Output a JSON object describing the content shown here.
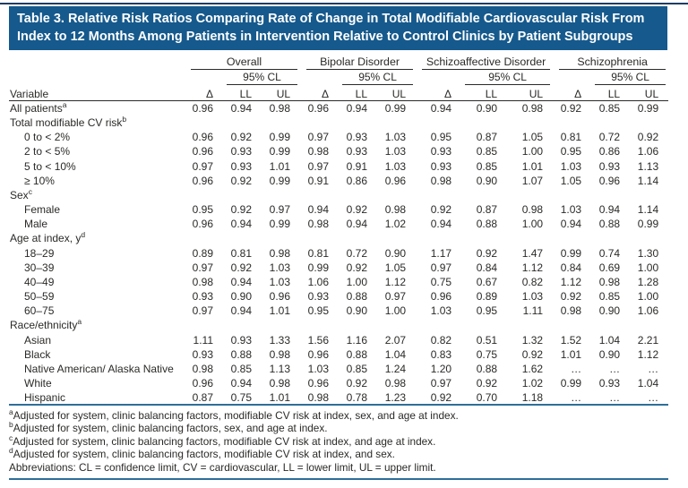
{
  "colors": {
    "banner_background": "#16598c",
    "banner_text": "#ffffff",
    "body_text": "#2b2a28",
    "blue_rule": "#2f6e99",
    "top_edge_rule": "#1d3d63"
  },
  "banner": {
    "title": "Table 3. Relative Risk Ratios Comparing Rate of Change in Total Modifiable Cardiovascular Risk From Index to 12 Months Among Patients in Intervention Relative to Control Clinics by Patient Subgroups"
  },
  "table": {
    "variable_header": "Variable",
    "groups": [
      {
        "name": "Overall"
      },
      {
        "name": "Bipolar Disorder"
      },
      {
        "name": "Schizoaffective Disorder"
      },
      {
        "name": "Schizophrenia"
      }
    ],
    "subheaders": {
      "delta": "Δ",
      "cl": "95% CL",
      "ll": "LL",
      "ul": "UL"
    },
    "rows": [
      {
        "label": "All patients",
        "sup": "a",
        "type": "data",
        "indent": false,
        "values": [
          "0.96",
          "0.94",
          "0.98",
          "0.96",
          "0.94",
          "0.99",
          "0.94",
          "0.90",
          "0.98",
          "0.92",
          "0.85",
          "0.99"
        ]
      },
      {
        "label": "Total modifiable CV risk",
        "sup": "b",
        "type": "section"
      },
      {
        "label": "0 to < 2%",
        "type": "data",
        "indent": true,
        "values": [
          "0.96",
          "0.92",
          "0.99",
          "0.97",
          "0.93",
          "1.03",
          "0.95",
          "0.87",
          "1.05",
          "0.81",
          "0.72",
          "0.92"
        ]
      },
      {
        "label": "2 to < 5%",
        "type": "data",
        "indent": true,
        "values": [
          "0.96",
          "0.93",
          "0.99",
          "0.98",
          "0.93",
          "1.03",
          "0.93",
          "0.85",
          "1.00",
          "0.95",
          "0.86",
          "1.06"
        ]
      },
      {
        "label": "5 to < 10%",
        "type": "data",
        "indent": true,
        "values": [
          "0.97",
          "0.93",
          "1.01",
          "0.97",
          "0.91",
          "1.03",
          "0.93",
          "0.85",
          "1.01",
          "1.03",
          "0.93",
          "1.13"
        ]
      },
      {
        "label": "≥ 10%",
        "type": "data",
        "indent": true,
        "values": [
          "0.96",
          "0.92",
          "0.99",
          "0.91",
          "0.86",
          "0.96",
          "0.98",
          "0.90",
          "1.07",
          "1.05",
          "0.96",
          "1.14"
        ]
      },
      {
        "label": "Sex",
        "sup": "c",
        "type": "section"
      },
      {
        "label": "Female",
        "type": "data",
        "indent": true,
        "values": [
          "0.95",
          "0.92",
          "0.97",
          "0.94",
          "0.92",
          "0.98",
          "0.92",
          "0.87",
          "0.98",
          "1.03",
          "0.94",
          "1.14"
        ]
      },
      {
        "label": "Male",
        "type": "data",
        "indent": true,
        "values": [
          "0.96",
          "0.94",
          "0.99",
          "0.98",
          "0.94",
          "1.02",
          "0.94",
          "0.88",
          "1.00",
          "0.94",
          "0.88",
          "0.99"
        ]
      },
      {
        "label": "Age at index, y",
        "sup": "d",
        "type": "section"
      },
      {
        "label": "18–29",
        "type": "data",
        "indent": true,
        "values": [
          "0.89",
          "0.81",
          "0.98",
          "0.81",
          "0.72",
          "0.90",
          "1.17",
          "0.92",
          "1.47",
          "0.99",
          "0.74",
          "1.30"
        ]
      },
      {
        "label": "30–39",
        "type": "data",
        "indent": true,
        "values": [
          "0.97",
          "0.92",
          "1.03",
          "0.99",
          "0.92",
          "1.05",
          "0.97",
          "0.84",
          "1.12",
          "0.84",
          "0.69",
          "1.00"
        ]
      },
      {
        "label": "40–49",
        "type": "data",
        "indent": true,
        "values": [
          "0.98",
          "0.94",
          "1.03",
          "1.06",
          "1.00",
          "1.12",
          "0.75",
          "0.67",
          "0.82",
          "1.12",
          "0.98",
          "1.28"
        ]
      },
      {
        "label": "50–59",
        "type": "data",
        "indent": true,
        "values": [
          "0.93",
          "0.90",
          "0.96",
          "0.93",
          "0.88",
          "0.97",
          "0.96",
          "0.89",
          "1.03",
          "0.92",
          "0.85",
          "1.00"
        ]
      },
      {
        "label": "60–75",
        "type": "data",
        "indent": true,
        "values": [
          "0.97",
          "0.94",
          "1.01",
          "0.95",
          "0.90",
          "1.00",
          "1.03",
          "0.95",
          "1.11",
          "0.98",
          "0.90",
          "1.06"
        ]
      },
      {
        "label": "Race/ethnicity",
        "sup": "a",
        "type": "section"
      },
      {
        "label": "Asian",
        "type": "data",
        "indent": true,
        "values": [
          "1.11",
          "0.93",
          "1.33",
          "1.56",
          "1.16",
          "2.07",
          "0.82",
          "0.51",
          "1.32",
          "1.52",
          "1.04",
          "2.21"
        ]
      },
      {
        "label": "Black",
        "type": "data",
        "indent": true,
        "values": [
          "0.93",
          "0.88",
          "0.98",
          "0.96",
          "0.88",
          "1.04",
          "0.83",
          "0.75",
          "0.92",
          "1.01",
          "0.90",
          "1.12"
        ]
      },
      {
        "label": "Native American/ Alaska Native",
        "type": "data",
        "indent": true,
        "values": [
          "0.98",
          "0.85",
          "1.13",
          "1.03",
          "0.85",
          "1.24",
          "1.20",
          "0.88",
          "1.62",
          "…",
          "…",
          "…"
        ]
      },
      {
        "label": "White",
        "type": "data",
        "indent": true,
        "values": [
          "0.96",
          "0.94",
          "0.98",
          "0.96",
          "0.92",
          "0.98",
          "0.97",
          "0.92",
          "1.02",
          "0.99",
          "0.93",
          "1.04"
        ]
      },
      {
        "label": "Hispanic",
        "type": "data",
        "indent": true,
        "values": [
          "0.87",
          "0.75",
          "1.01",
          "0.98",
          "0.78",
          "1.23",
          "0.92",
          "0.70",
          "1.18",
          "…",
          "…",
          "…"
        ]
      }
    ]
  },
  "footnotes": [
    {
      "sup": "a",
      "text": "Adjusted for system, clinic balancing factors, modifiable CV risk at index, sex, and age at index."
    },
    {
      "sup": "b",
      "text": "Adjusted for system, clinic balancing factors, sex, and age at index."
    },
    {
      "sup": "c",
      "text": "Adjusted for system, clinic balancing factors, modifiable CV risk at index, and age at index."
    },
    {
      "sup": "d",
      "text": "Adjusted for system, clinic balancing factors, modifiable CV risk at index, and sex."
    },
    {
      "text": "Abbreviations: CL = confidence limit, CV = cardiovascular, LL = lower limit, UL = upper limit."
    }
  ]
}
